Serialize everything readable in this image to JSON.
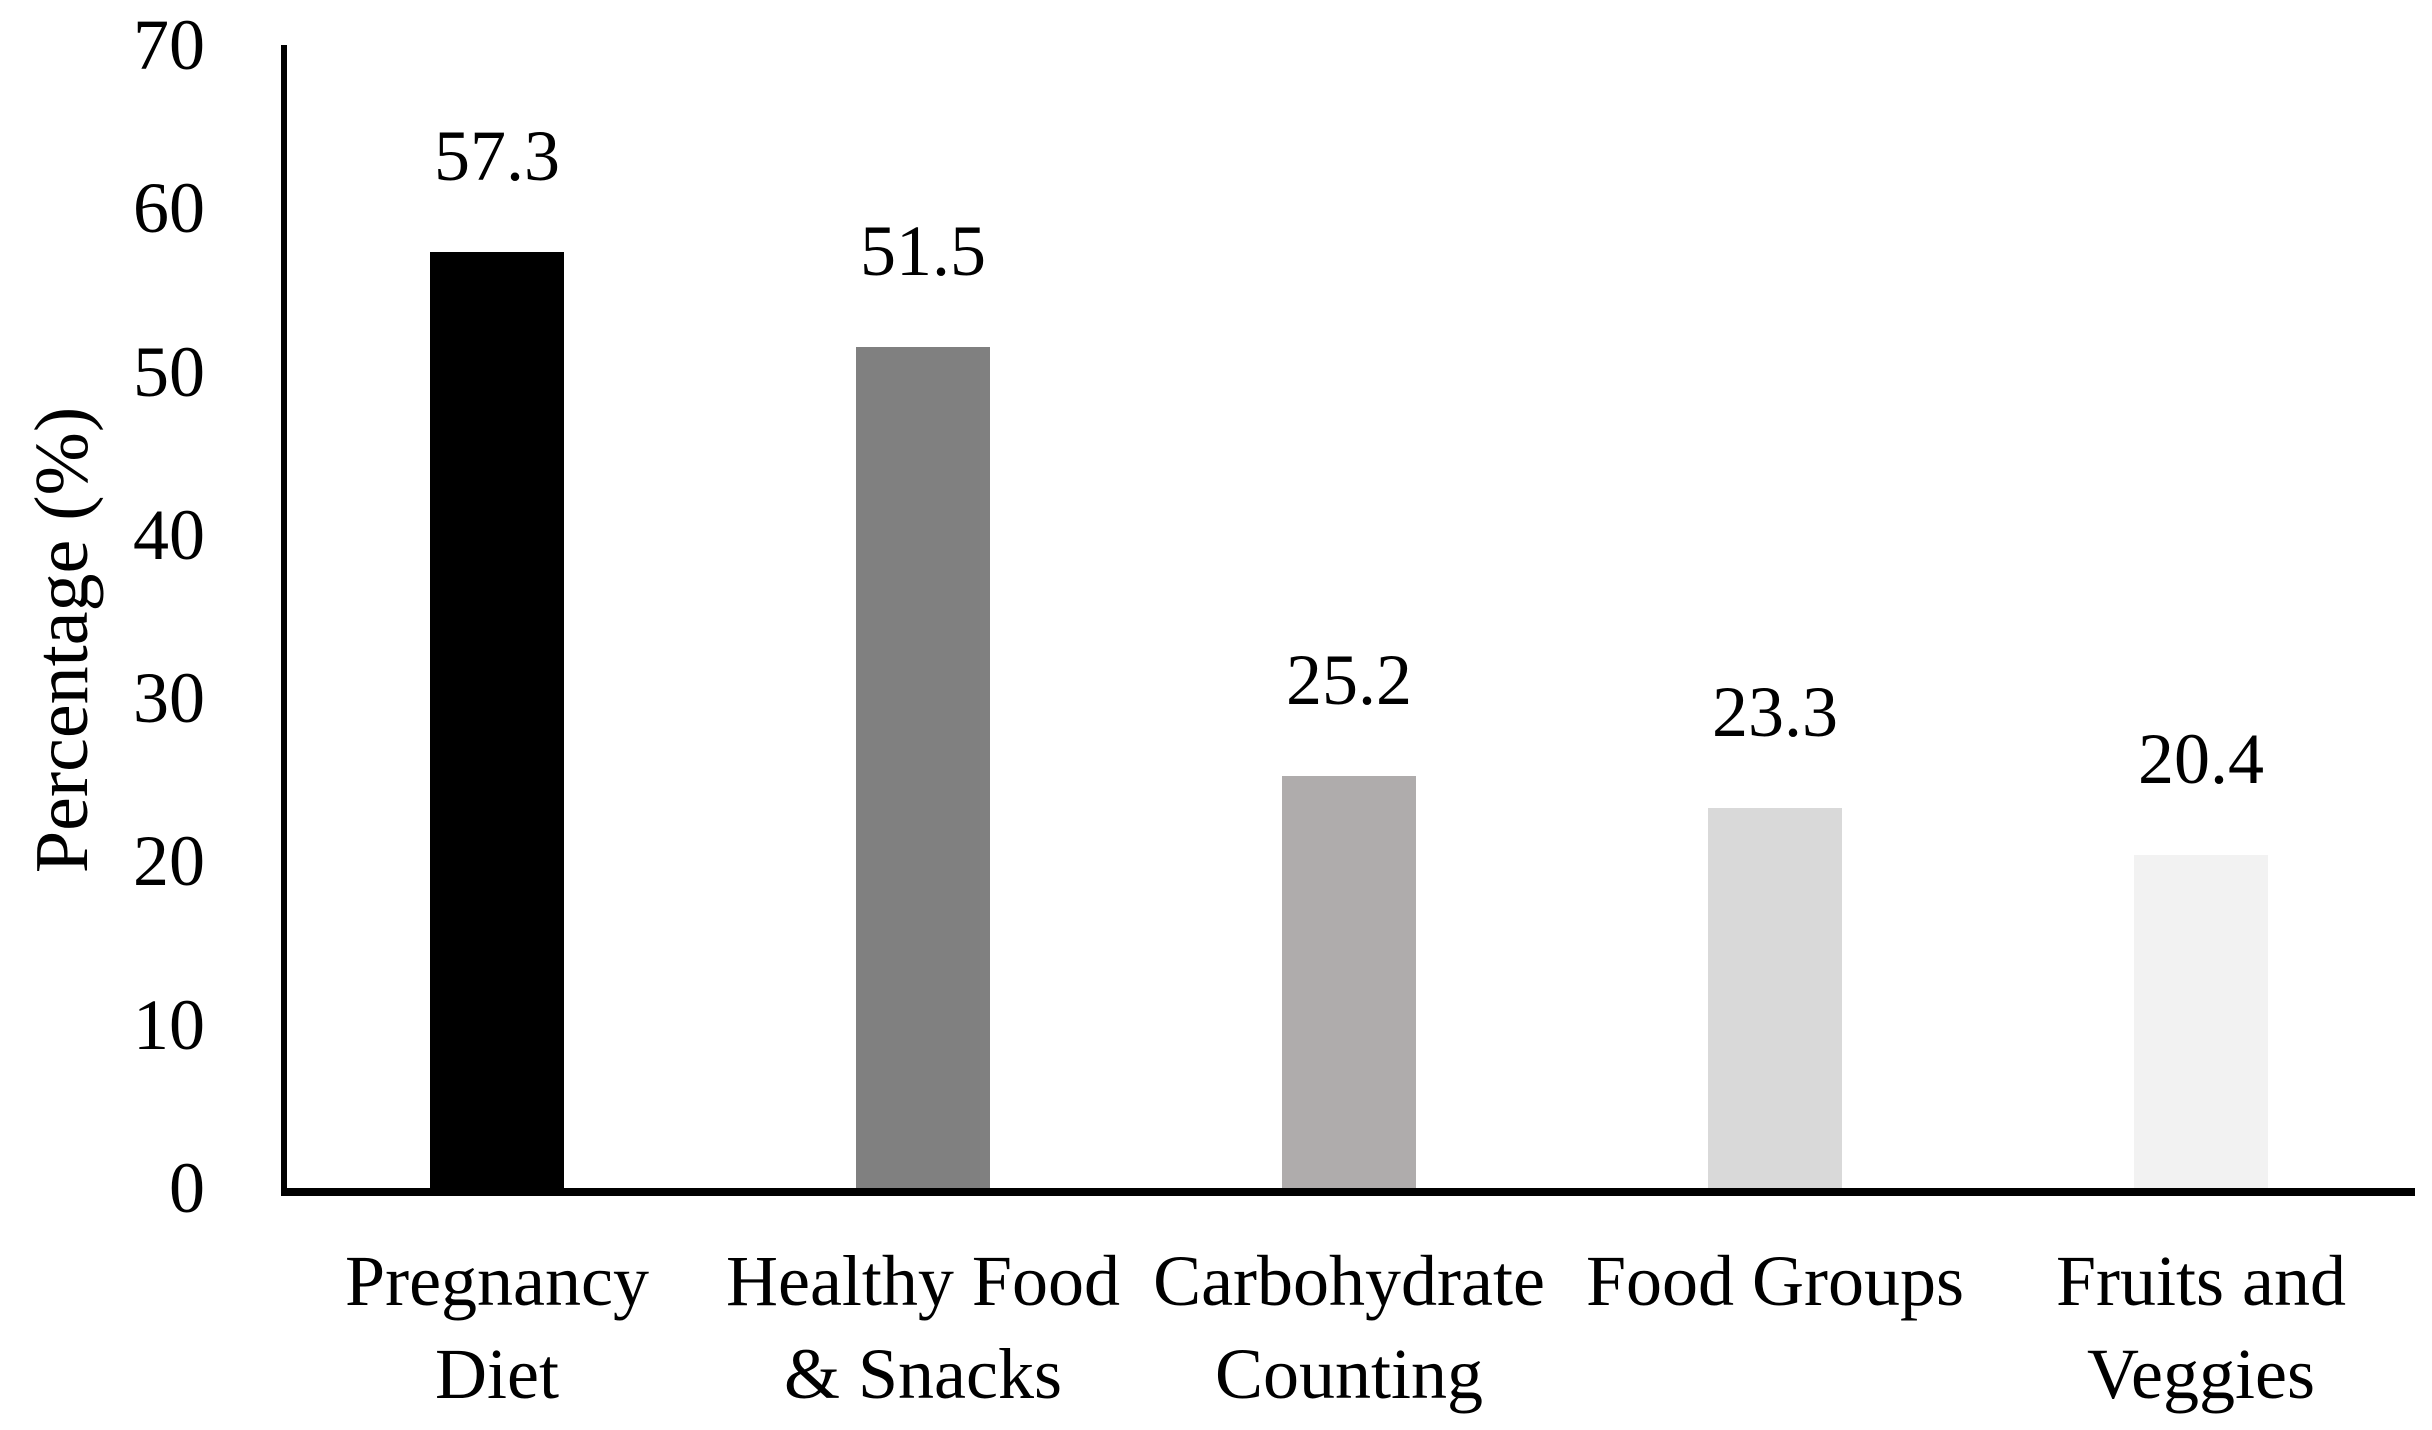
{
  "chart_data": {
    "type": "bar",
    "title": "",
    "xlabel": "",
    "ylabel": "Percentage (%)",
    "categories": [
      "Pregnancy\nDiet",
      "Healthy Food\n& Snacks",
      "Carbohydrate\nCounting",
      "Food Groups",
      "Fruits and\nVeggies"
    ],
    "values": [
      57.3,
      51.5,
      25.2,
      23.3,
      20.4
    ],
    "data_labels": [
      "57.3",
      "51.5",
      "25.2",
      "23.3",
      "20.4"
    ],
    "bar_colors": [
      "#000000",
      "#808080",
      "#AFACAC",
      "#D9D9D9",
      "#F2F2F2"
    ],
    "ylim": [
      0,
      70
    ],
    "yticks": [
      0,
      10,
      20,
      30,
      40,
      50,
      60,
      70
    ],
    "grid": false,
    "legend": "none",
    "background_color": "#ffffff",
    "text_color": "#000000"
  }
}
